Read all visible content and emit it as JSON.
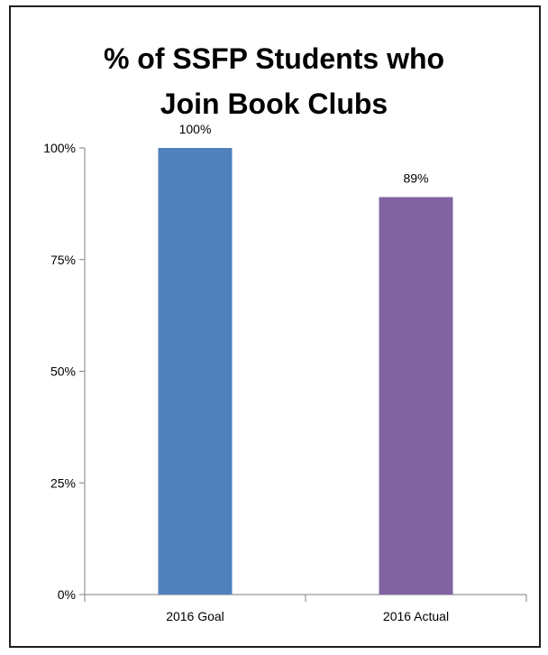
{
  "chart_data": {
    "type": "bar",
    "title_lines": [
      "% of SSFP Students who",
      "Join Book Clubs"
    ],
    "categories": [
      "2016 Goal",
      "2016 Actual"
    ],
    "values": [
      100,
      89
    ],
    "value_labels": [
      "100%",
      "89%"
    ],
    "colors": [
      "#4f81bd",
      "#8064a2"
    ],
    "ylim": [
      0,
      100
    ],
    "yticks": [
      0,
      25,
      50,
      75,
      100
    ],
    "ytick_labels": [
      "0%",
      "25%",
      "50%",
      "75%",
      "100%"
    ],
    "grid": false,
    "legend": "none"
  }
}
